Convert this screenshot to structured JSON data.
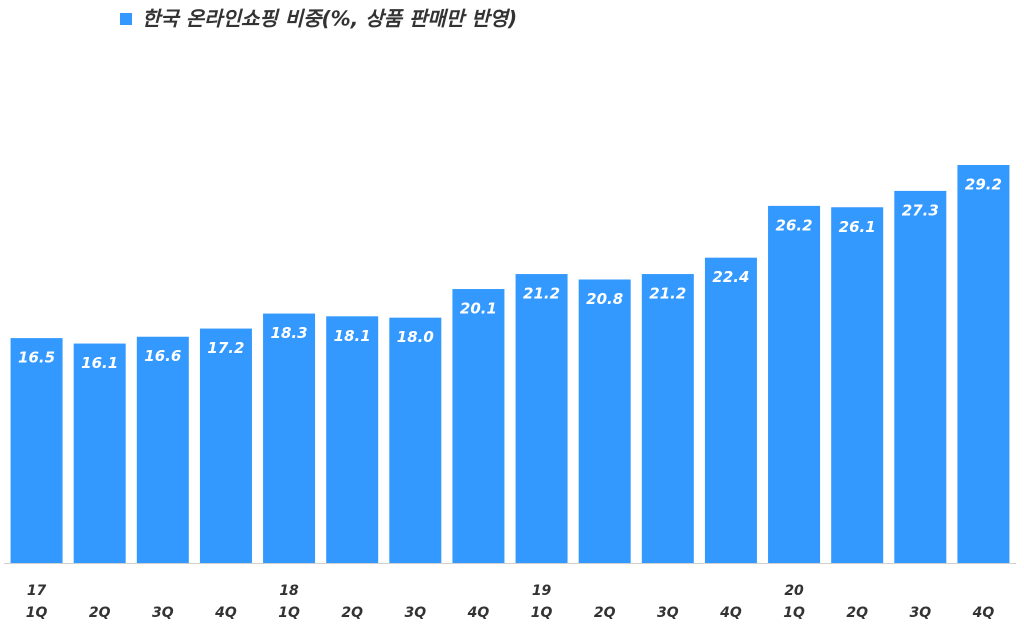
{
  "chart_data": {
    "type": "bar",
    "title": "한국 온라인쇼핑 비중(%, 상품 판매만 반영)",
    "categories": [
      "1Q",
      "2Q",
      "3Q",
      "4Q",
      "1Q",
      "2Q",
      "3Q",
      "4Q",
      "1Q",
      "2Q",
      "3Q",
      "4Q",
      "1Q",
      "2Q",
      "3Q",
      "4Q"
    ],
    "year_labels": [
      "17",
      null,
      null,
      null,
      "18",
      null,
      null,
      null,
      "19",
      null,
      null,
      null,
      "20",
      null,
      null,
      null
    ],
    "values": [
      16.5,
      16.1,
      16.6,
      17.2,
      18.3,
      18.1,
      18.0,
      20.1,
      21.2,
      20.8,
      21.2,
      22.4,
      26.2,
      26.1,
      27.3,
      29.2
    ],
    "value_labels": [
      "16.5",
      "16.1",
      "16.6",
      "17.2",
      "18.3",
      "18.1",
      "18.0",
      "20.1",
      "21.2",
      "20.8",
      "21.2",
      "22.4",
      "26.2",
      "26.1",
      "27.3",
      "29.2"
    ],
    "color": "#3399ff"
  }
}
